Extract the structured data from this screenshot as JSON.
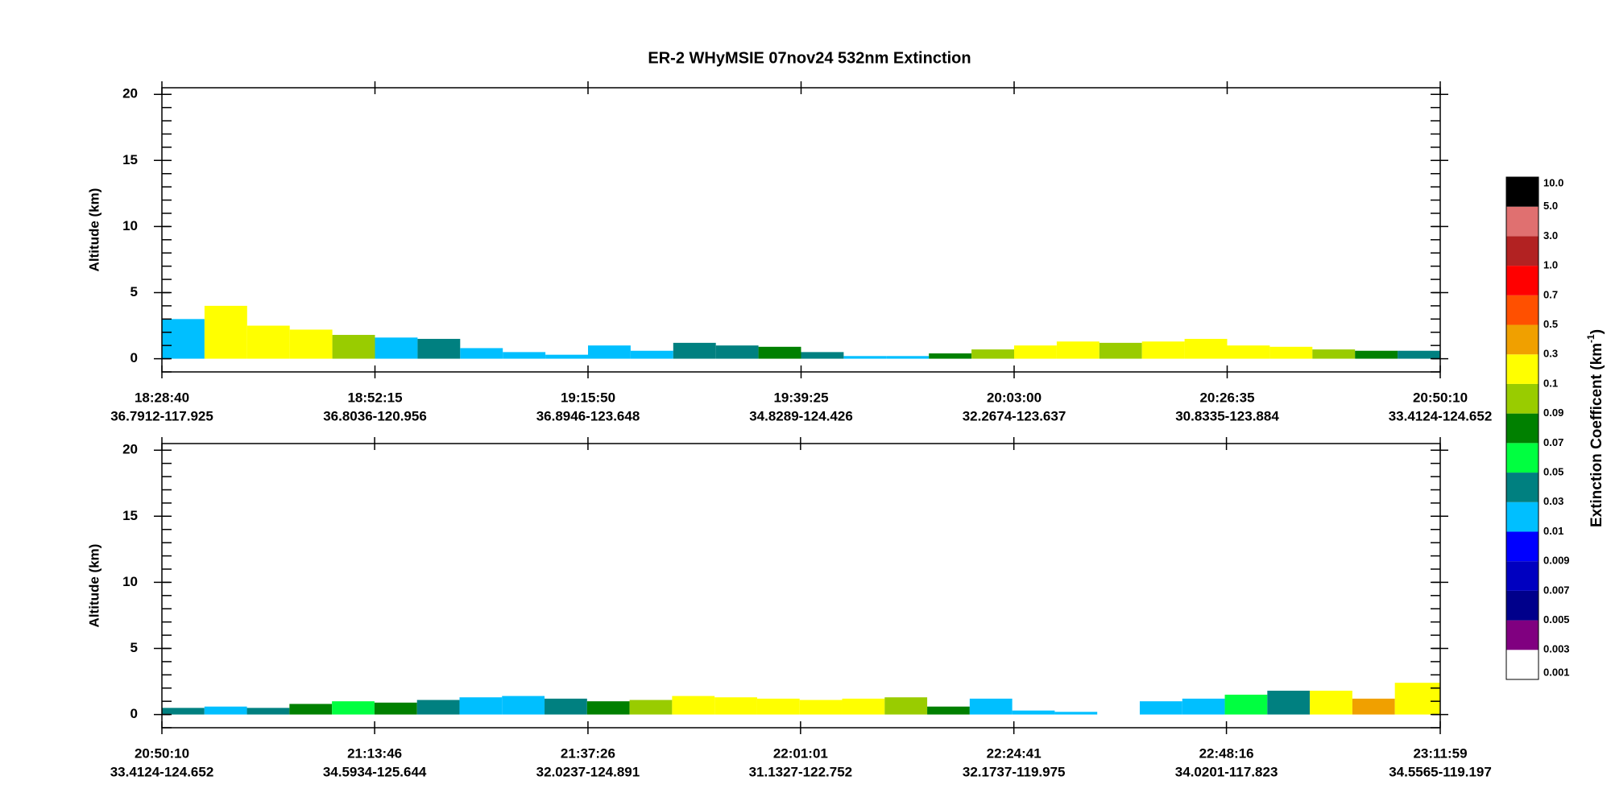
{
  "title": "ER-2  WHyMSIE  07nov24  532nm Extinction",
  "chart_data": [
    {
      "type": "curtain",
      "ylabel": "Altitude (km)",
      "ylim": [
        -1,
        20.5
      ],
      "yticks": [
        0,
        5,
        10,
        15,
        20
      ],
      "yminor": 1,
      "xlim": [
        66520,
        75010
      ],
      "xticks": [
        {
          "value": 66520,
          "label": "18:28:40"
        },
        {
          "value": 67935,
          "label": "18:52:15"
        },
        {
          "value": 69350,
          "label": "19:15:50"
        },
        {
          "value": 70765,
          "label": "19:39:25"
        },
        {
          "value": 72180,
          "label": "20:03:00"
        },
        {
          "value": 73595,
          "label": "20:26:35"
        },
        {
          "value": 75010,
          "label": "20:50:10"
        }
      ],
      "x_locations": [
        "36.7912-117.925",
        "36.8036-120.956",
        "36.8946-123.648",
        "34.8289-124.426",
        "32.2674-123.637",
        "30.8335-123.884",
        "33.4124-124.652"
      ],
      "bins": [
        66520,
        66803,
        67086,
        67369,
        67652,
        67935,
        68218,
        68501,
        68784,
        69067,
        69350,
        69633,
        69916,
        70199,
        70482,
        70765,
        71048,
        71331,
        71614,
        71897,
        72180,
        72463,
        72746,
        73029,
        73312,
        73595,
        73878,
        74161,
        74444,
        74727,
        75010
      ],
      "tops": [
        3.0,
        4.0,
        2.5,
        2.2,
        1.8,
        1.6,
        1.5,
        0.8,
        0.5,
        0.3,
        1.0,
        0.6,
        1.2,
        1.0,
        0.9,
        0.5,
        0.2,
        0.2,
        0.4,
        0.7,
        1.0,
        1.3,
        1.2,
        1.3,
        1.5,
        1.0,
        0.9,
        0.7,
        0.6,
        0.6
      ],
      "extinction": [
        0.02,
        0.2,
        0.2,
        0.2,
        0.095,
        0.02,
        0.04,
        0.02,
        0.02,
        0.02,
        0.02,
        0.02,
        0.04,
        0.04,
        0.08,
        0.04,
        0.02,
        0.02,
        0.08,
        0.095,
        0.2,
        0.2,
        0.095,
        0.2,
        0.2,
        0.2,
        0.2,
        0.095,
        0.08,
        0.04
      ]
    },
    {
      "type": "curtain",
      "ylabel": "Altitude (km)",
      "ylim": [
        -1,
        20.5
      ],
      "yticks": [
        0,
        5,
        10,
        15,
        20
      ],
      "yminor": 1,
      "xlim": [
        75010,
        83519
      ],
      "xticks": [
        {
          "value": 75010,
          "label": "20:50:10"
        },
        {
          "value": 76426,
          "label": "21:13:46"
        },
        {
          "value": 77846,
          "label": "21:37:26"
        },
        {
          "value": 79261,
          "label": "22:01:01"
        },
        {
          "value": 80681,
          "label": "22:24:41"
        },
        {
          "value": 82096,
          "label": "22:48:16"
        },
        {
          "value": 83519,
          "label": "23:11:59"
        }
      ],
      "x_locations": [
        "33.4124-124.652",
        "34.5934-125.644",
        "32.0237-124.891",
        "31.1327-122.752",
        "32.1737-119.975",
        "34.0201-117.823",
        "34.5565-119.197"
      ],
      "bins": [
        75010,
        75293,
        75576,
        75859,
        76142,
        76425,
        76708,
        76991,
        77274,
        77557,
        77840,
        78123,
        78406,
        78689,
        78972,
        79255,
        79538,
        79821,
        80104,
        80387,
        80670,
        80953,
        81236,
        81519,
        81802,
        82085,
        82368,
        82651,
        82934,
        83217,
        83519
      ],
      "tops": [
        0.5,
        0.6,
        0.5,
        0.8,
        1.0,
        0.9,
        1.1,
        1.3,
        1.4,
        1.2,
        1.0,
        1.1,
        1.4,
        1.3,
        1.2,
        1.1,
        1.2,
        1.3,
        0.6,
        1.2,
        0.3,
        0.2,
        null,
        1.0,
        1.2,
        1.5,
        1.8,
        1.8,
        1.2,
        2.4
      ],
      "extinction": [
        0.04,
        0.02,
        0.04,
        0.08,
        0.06,
        0.08,
        0.04,
        0.02,
        0.02,
        0.04,
        0.08,
        0.095,
        0.2,
        0.2,
        0.2,
        0.2,
        0.2,
        0.095,
        0.08,
        0.02,
        0.02,
        0.02,
        null,
        0.02,
        0.02,
        0.06,
        0.04,
        0.2,
        0.4,
        0.2
      ]
    }
  ],
  "colorbar": {
    "label": "Extinction Coefficent (km",
    "label_sup": "-1",
    "label_end": ")",
    "levels": [
      0.001,
      0.003,
      0.005,
      0.007,
      0.009,
      0.01,
      0.03,
      0.05,
      0.07,
      0.09,
      0.1,
      0.3,
      0.5,
      0.7,
      {
        "value": 1,
        "label": "1.0"
      },
      {
        "value": 3,
        "label": "3.0"
      },
      {
        "value": 5,
        "label": "5.0"
      },
      {
        "value": 10,
        "label": "10.0"
      }
    ],
    "colors": [
      "#ffffff",
      "#800080",
      "#00008b",
      "#0000c0",
      "#0000ff",
      "#00bfff",
      "#008080",
      "#00ff40",
      "#008000",
      "#99cc00",
      "#ffff00",
      "#f0a000",
      "#ff5000",
      "#ff0000",
      "#b22222",
      "#e07070",
      "#000000"
    ]
  }
}
